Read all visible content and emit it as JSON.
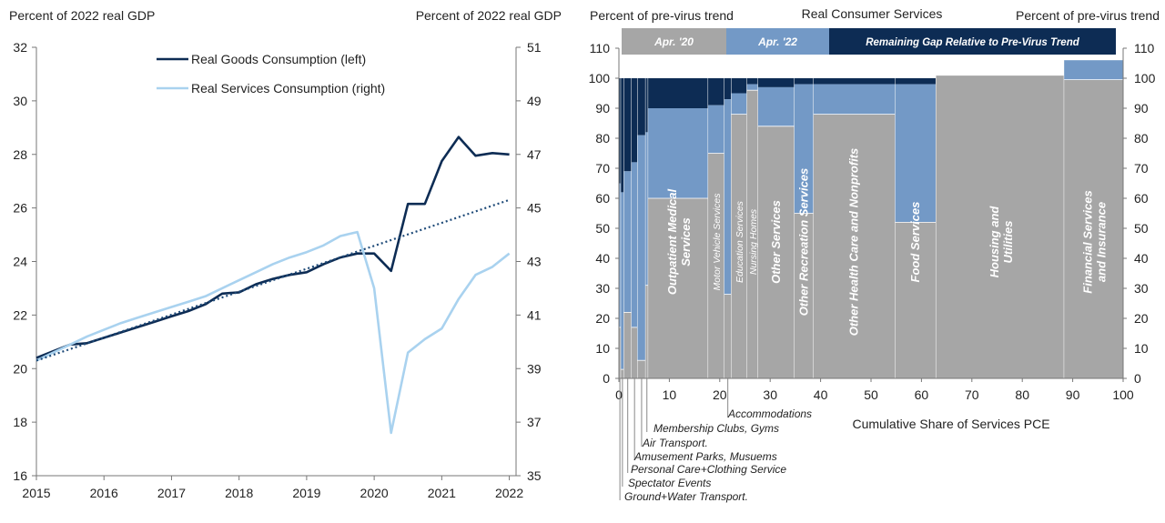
{
  "chart_data": [
    {
      "type": "line",
      "ylabel_left": "Percent of 2022 real GDP",
      "ylabel_right": "Percent of 2022 real GDP",
      "ylim_left": [
        16,
        32
      ],
      "ylim_right": [
        35,
        51
      ],
      "yticks_left": [
        16,
        18,
        20,
        22,
        24,
        26,
        28,
        30,
        32
      ],
      "yticks_right": [
        35,
        37,
        39,
        41,
        43,
        45,
        47,
        49,
        51
      ],
      "xlim": [
        2015,
        2022.1
      ],
      "xticks": [
        2015,
        2016,
        2017,
        2018,
        2019,
        2020,
        2021,
        2022
      ],
      "legend": [
        "Real Goods Consumption (left)",
        "Real Services Consumption (right)"
      ],
      "series": [
        {
          "name": "Real Goods Consumption (left)",
          "axis": "left",
          "color": "#0d2c54",
          "x": [
            2015.0,
            2015.25,
            2015.5,
            2015.75,
            2016.0,
            2016.25,
            2016.5,
            2016.75,
            2017.0,
            2017.25,
            2017.5,
            2017.75,
            2018.0,
            2018.25,
            2018.5,
            2018.75,
            2019.0,
            2019.25,
            2019.5,
            2019.75,
            2020.0,
            2020.25,
            2020.5,
            2020.75,
            2021.0,
            2021.25,
            2021.5,
            2021.75,
            2022.0
          ],
          "values": [
            20.4,
            20.65,
            20.9,
            20.95,
            21.15,
            21.35,
            21.55,
            21.75,
            21.95,
            22.15,
            22.4,
            22.8,
            22.85,
            23.15,
            23.35,
            23.5,
            23.6,
            23.9,
            24.15,
            24.3,
            24.3,
            23.65,
            26.15,
            26.15,
            27.75,
            28.65,
            27.95,
            28.05,
            28.0
          ]
        },
        {
          "name": "Real Services Consumption (right)",
          "axis": "right",
          "color": "#a9d2ef",
          "x": [
            2015.0,
            2015.25,
            2015.5,
            2015.75,
            2016.0,
            2016.25,
            2016.5,
            2016.75,
            2017.0,
            2017.25,
            2017.5,
            2017.75,
            2018.0,
            2018.25,
            2018.5,
            2018.75,
            2019.0,
            2019.25,
            2019.5,
            2019.75,
            2020.0,
            2020.25,
            2020.5,
            2020.75,
            2021.0,
            2021.25,
            2021.5,
            2021.75,
            2022.0
          ],
          "values": [
            39.3,
            39.6,
            39.9,
            40.2,
            40.45,
            40.7,
            40.9,
            41.1,
            41.3,
            41.5,
            41.7,
            42.0,
            42.3,
            42.6,
            42.9,
            43.15,
            43.35,
            43.6,
            43.95,
            44.1,
            42.0,
            36.6,
            39.6,
            40.1,
            40.5,
            41.6,
            42.5,
            42.8,
            43.3
          ]
        },
        {
          "name": "Goods trend",
          "axis": "left",
          "style": "dotted",
          "color": "#1e4a78",
          "x": [
            2015.0,
            2022.0
          ],
          "values": [
            20.3,
            26.3
          ]
        }
      ]
    },
    {
      "type": "stacked-variable-width-bar",
      "title": "Real Consumer Services",
      "ylabel_left": "Percent of pre-virus trend",
      "ylabel_right": "Percent of pre-virus trend",
      "xlabel": "Cumulative  Share of Services PCE",
      "ylim": [
        0,
        110
      ],
      "yticks": [
        0,
        10,
        20,
        30,
        40,
        50,
        60,
        70,
        80,
        90,
        100,
        110
      ],
      "xlim": [
        0,
        100
      ],
      "xticks": [
        0,
        10,
        20,
        30,
        40,
        50,
        60,
        70,
        80,
        90,
        100
      ],
      "legend": [
        {
          "label": "Apr. '20",
          "color": "#a6a6a6"
        },
        {
          "label": "Apr. '22",
          "color": "#7399c6"
        },
        {
          "label": "Remaining Gap Relative to Pre-Virus Trend",
          "color": "#0d2c54"
        }
      ],
      "categories": [
        {
          "name": "Ground+Water Transport.",
          "start": 0.0,
          "end": 0.4,
          "apr20": 17,
          "apr22": 65,
          "label_inside": false
        },
        {
          "name": "Spectator Events",
          "start": 0.4,
          "end": 1.0,
          "apr20": 3,
          "apr22": 62,
          "label_inside": false
        },
        {
          "name": "Personal Care+Clothing  Service",
          "start": 1.0,
          "end": 2.5,
          "apr20": 22,
          "apr22": 69,
          "label_inside": false
        },
        {
          "name": "Amusement Parks, Musuems",
          "start": 2.5,
          "end": 3.7,
          "apr20": 17,
          "apr22": 72,
          "label_inside": false
        },
        {
          "name": "Air Transport.",
          "start": 3.7,
          "end": 5.3,
          "apr20": 6,
          "apr22": 81,
          "label_inside": false
        },
        {
          "name": "Membership  Clubs, Gyms",
          "start": 5.3,
          "end": 5.8,
          "apr20": 31,
          "apr22": 82,
          "label_inside": false
        },
        {
          "name": "Outpatient Medical Services",
          "start": 5.8,
          "end": 17.7,
          "apr20": 60,
          "apr22": 90,
          "label_inside": true
        },
        {
          "name": "Motor Vehicle Services",
          "start": 17.7,
          "end": 20.9,
          "apr20": 75,
          "apr22": 91,
          "label_inside": true
        },
        {
          "name": "Accommodations",
          "start": 20.9,
          "end": 22.3,
          "apr20": 28,
          "apr22": 93,
          "label_inside": false
        },
        {
          "name": "Education Services",
          "start": 22.3,
          "end": 25.4,
          "apr20": 88,
          "apr22": 95,
          "label_inside": true
        },
        {
          "name": "Nursing Homes",
          "start": 25.4,
          "end": 27.6,
          "apr20": 96,
          "apr22": 98,
          "label_inside": true
        },
        {
          "name": "Other Services",
          "start": 27.6,
          "end": 34.8,
          "apr20": 84,
          "apr22": 97,
          "label_inside": true
        },
        {
          "name": "Other Recreation  Services",
          "start": 34.8,
          "end": 38.6,
          "apr20": 55,
          "apr22": 98,
          "label_inside": true
        },
        {
          "name": "Other Health Care and Nonprofits",
          "start": 38.6,
          "end": 54.8,
          "apr20": 88,
          "apr22": 98,
          "label_inside": true
        },
        {
          "name": "Food Services",
          "start": 54.8,
          "end": 62.9,
          "apr20": 52,
          "apr22": 98,
          "label_inside": true
        },
        {
          "name": "Housing and Utilities",
          "start": 62.9,
          "end": 88.3,
          "apr20": 101,
          "apr22": 101,
          "label_inside": true
        },
        {
          "name": "Financial Services and Insurance",
          "start": 88.3,
          "end": 100.0,
          "apr20": 99.5,
          "apr22": 106,
          "label_inside": true
        }
      ]
    }
  ]
}
